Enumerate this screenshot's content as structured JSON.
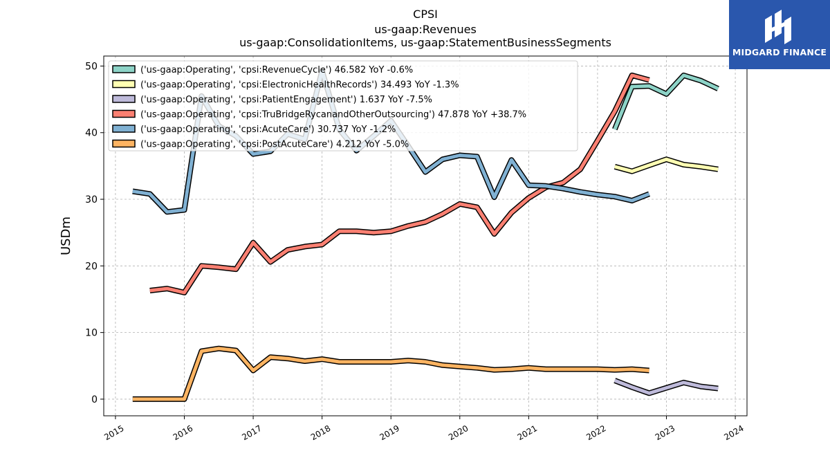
{
  "brand": {
    "name": "MIDGARD FINANCE",
    "background": "#2a57ad"
  },
  "chart_data": {
    "type": "line",
    "title_lines": [
      "CPSI",
      "us-gaap:Revenues",
      "us-gaap:ConsolidationItems, us-gaap:StatementBusinessSegments"
    ],
    "ylabel": "USDm",
    "xlabel": "",
    "xlim": [
      2014.83,
      2024.17
    ],
    "ylim": [
      -2.5,
      51.5
    ],
    "x_ticks": [
      "2015",
      "2016",
      "2017",
      "2018",
      "2019",
      "2020",
      "2021",
      "2022",
      "2023",
      "2024"
    ],
    "y_ticks": [
      "0",
      "10",
      "20",
      "30",
      "40",
      "50"
    ],
    "grid": true,
    "legend_position": "top-left",
    "series": [
      {
        "name": "('us-gaap:Operating', 'cpsi:RevenueCycle') 46.582 YoY -0.6%",
        "color": "#8dd3c7",
        "points": [
          [
            2022.25,
            40.5
          ],
          [
            2022.5,
            46.9
          ],
          [
            2022.75,
            47.0
          ],
          [
            2023.0,
            45.8
          ],
          [
            2023.25,
            48.6
          ],
          [
            2023.5,
            47.8
          ],
          [
            2023.75,
            46.6
          ]
        ]
      },
      {
        "name": "('us-gaap:Operating', 'cpsi:ElectronicHealthRecords') 34.493 YoY -1.3%",
        "color": "#ffffb3",
        "points": [
          [
            2022.25,
            34.9
          ],
          [
            2022.5,
            34.2
          ],
          [
            2022.75,
            35.1
          ],
          [
            2023.0,
            36.0
          ],
          [
            2023.25,
            35.2
          ],
          [
            2023.5,
            34.9
          ],
          [
            2023.75,
            34.5
          ]
        ]
      },
      {
        "name": "('us-gaap:Operating', 'cpsi:PatientEngagement') 1.637 YoY -7.5%",
        "color": "#bebada",
        "points": [
          [
            2022.25,
            2.8
          ],
          [
            2022.5,
            1.8
          ],
          [
            2022.75,
            0.9
          ],
          [
            2023.0,
            1.7
          ],
          [
            2023.25,
            2.5
          ],
          [
            2023.5,
            1.9
          ],
          [
            2023.75,
            1.6
          ]
        ]
      },
      {
        "name": "('us-gaap:Operating', 'cpsi:TruBridgeRycanandOtherOutsourcing') 47.878 YoY +38.7%",
        "color": "#fb8072",
        "points": [
          [
            2015.5,
            16.3
          ],
          [
            2015.75,
            16.6
          ],
          [
            2016.0,
            16.0
          ],
          [
            2016.25,
            20.0
          ],
          [
            2016.5,
            19.8
          ],
          [
            2016.75,
            19.5
          ],
          [
            2017.0,
            23.5
          ],
          [
            2017.25,
            20.6
          ],
          [
            2017.5,
            22.4
          ],
          [
            2017.75,
            22.9
          ],
          [
            2018.0,
            23.2
          ],
          [
            2018.25,
            25.2
          ],
          [
            2018.5,
            25.2
          ],
          [
            2018.75,
            25.0
          ],
          [
            2019.0,
            25.2
          ],
          [
            2019.25,
            26.0
          ],
          [
            2019.5,
            26.6
          ],
          [
            2019.75,
            27.8
          ],
          [
            2020.0,
            29.3
          ],
          [
            2020.25,
            28.8
          ],
          [
            2020.5,
            24.8
          ],
          [
            2020.75,
            28.0
          ],
          [
            2021.0,
            30.2
          ],
          [
            2021.25,
            31.8
          ],
          [
            2021.5,
            32.5
          ],
          [
            2021.75,
            34.5
          ],
          [
            2022.0,
            38.8
          ],
          [
            2022.25,
            43.2
          ],
          [
            2022.5,
            48.6
          ],
          [
            2022.75,
            47.9
          ]
        ]
      },
      {
        "name": "('us-gaap:Operating', 'cpsi:AcuteCare') 30.737 YoY -1.2%",
        "color": "#80b1d3",
        "points": [
          [
            2015.25,
            31.2
          ],
          [
            2015.5,
            30.8
          ],
          [
            2015.75,
            28.1
          ],
          [
            2016.0,
            28.4
          ],
          [
            2016.25,
            45.5
          ],
          [
            2016.5,
            41.0
          ],
          [
            2016.75,
            39.5
          ],
          [
            2017.0,
            36.8
          ],
          [
            2017.25,
            37.2
          ],
          [
            2017.5,
            39.8
          ],
          [
            2017.75,
            39.0
          ],
          [
            2018.0,
            49.3
          ],
          [
            2018.25,
            40.5
          ],
          [
            2018.5,
            37.3
          ],
          [
            2018.75,
            39.5
          ],
          [
            2019.0,
            41.8
          ],
          [
            2019.25,
            38.0
          ],
          [
            2019.5,
            34.1
          ],
          [
            2019.75,
            36.0
          ],
          [
            2020.0,
            36.6
          ],
          [
            2020.25,
            36.4
          ],
          [
            2020.5,
            30.3
          ],
          [
            2020.75,
            35.9
          ],
          [
            2021.0,
            32.1
          ],
          [
            2021.25,
            32.0
          ],
          [
            2021.5,
            31.6
          ],
          [
            2021.75,
            31.1
          ],
          [
            2022.0,
            30.7
          ],
          [
            2022.25,
            30.4
          ],
          [
            2022.5,
            29.8
          ],
          [
            2022.75,
            30.8
          ]
        ]
      },
      {
        "name": "('us-gaap:Operating', 'cpsi:PostAcuteCare') 4.212 YoY -5.0%",
        "color": "#fdb462",
        "points": [
          [
            2015.25,
            0.0
          ],
          [
            2015.5,
            0.0
          ],
          [
            2015.75,
            0.0
          ],
          [
            2016.0,
            0.0
          ],
          [
            2016.25,
            7.2
          ],
          [
            2016.5,
            7.6
          ],
          [
            2016.75,
            7.3
          ],
          [
            2017.0,
            4.3
          ],
          [
            2017.25,
            6.3
          ],
          [
            2017.5,
            6.1
          ],
          [
            2017.75,
            5.7
          ],
          [
            2018.0,
            6.0
          ],
          [
            2018.25,
            5.6
          ],
          [
            2018.5,
            5.6
          ],
          [
            2018.75,
            5.6
          ],
          [
            2019.0,
            5.6
          ],
          [
            2019.25,
            5.8
          ],
          [
            2019.5,
            5.6
          ],
          [
            2019.75,
            5.1
          ],
          [
            2020.0,
            4.9
          ],
          [
            2020.25,
            4.7
          ],
          [
            2020.5,
            4.4
          ],
          [
            2020.75,
            4.5
          ],
          [
            2021.0,
            4.7
          ],
          [
            2021.25,
            4.5
          ],
          [
            2021.5,
            4.5
          ],
          [
            2021.75,
            4.5
          ],
          [
            2022.0,
            4.5
          ],
          [
            2022.25,
            4.4
          ],
          [
            2022.5,
            4.5
          ],
          [
            2022.75,
            4.3
          ]
        ]
      }
    ]
  }
}
